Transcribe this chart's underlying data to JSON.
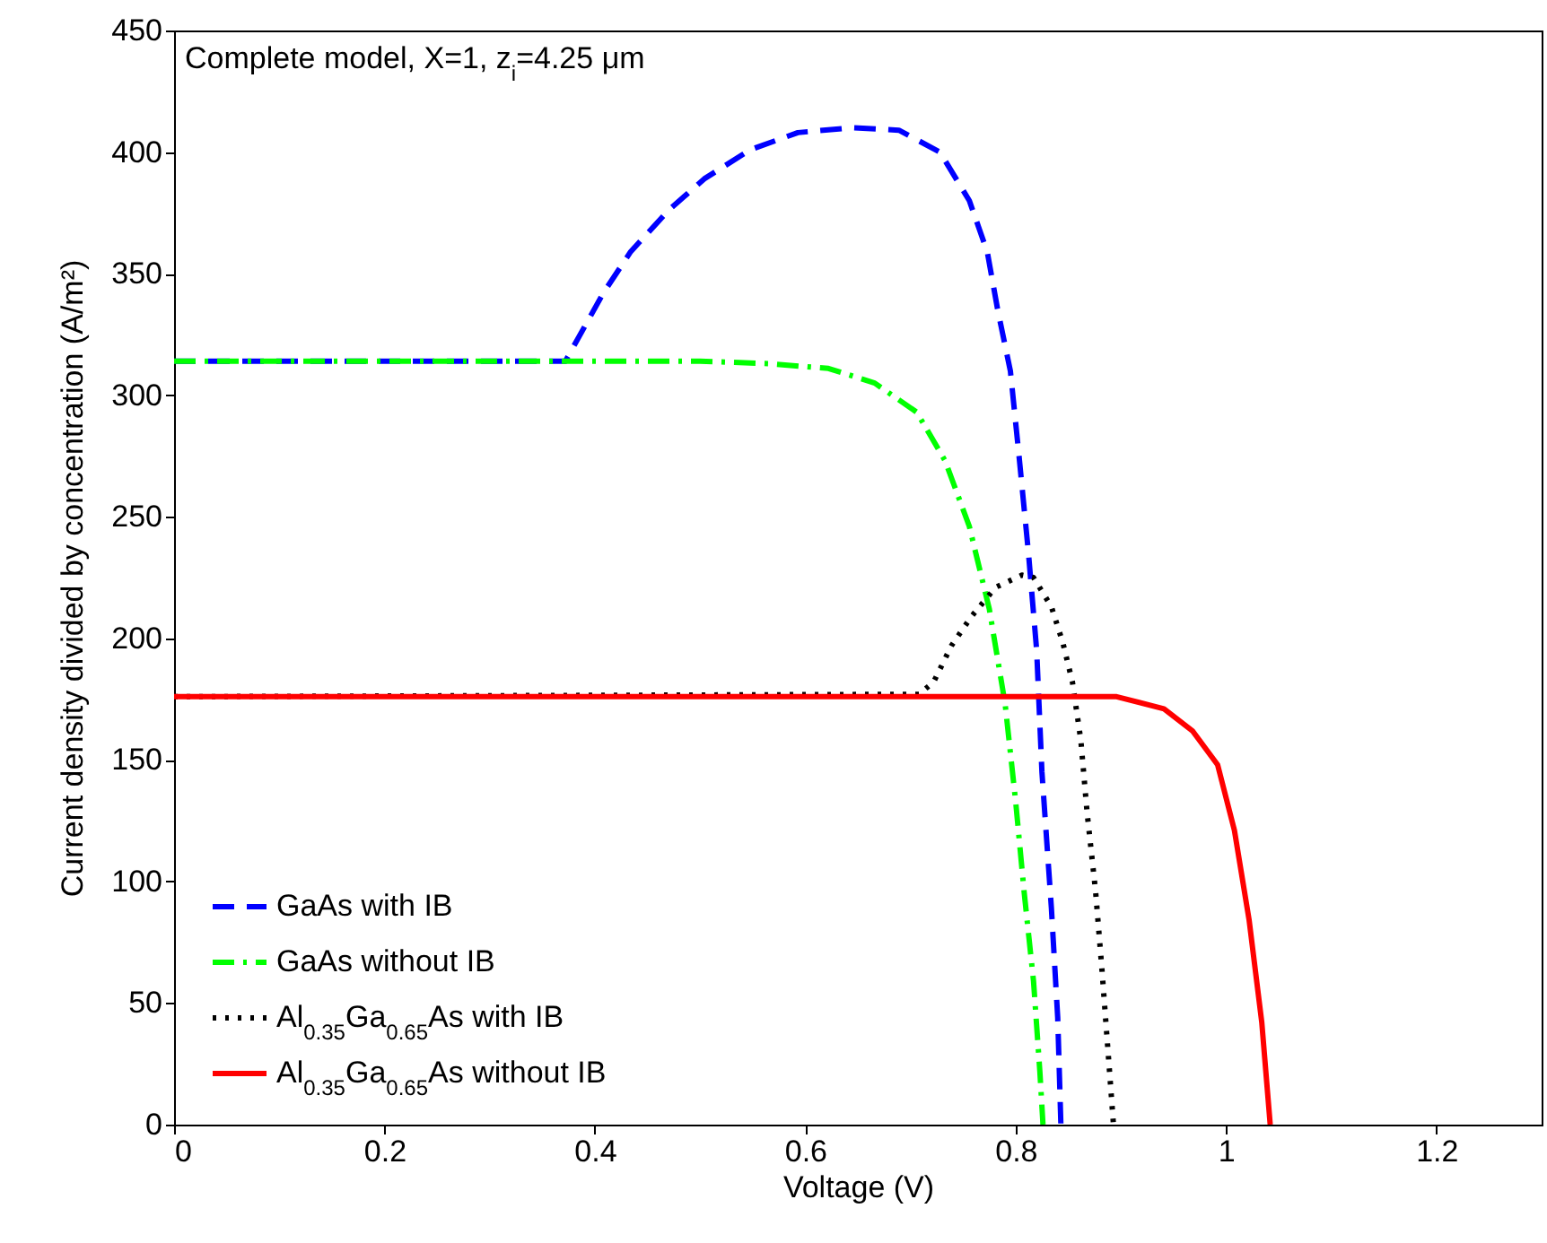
{
  "chart_data": {
    "type": "line",
    "xlabel": "Voltage (V)",
    "ylabel": "Current density divided by concentration (A/m²)",
    "annotations": [
      "Complete model, X=1, z$_{i}$=4.25 μm"
    ],
    "xlim": [
      0,
      1.3
    ],
    "xticks": [
      0,
      0.2,
      0.4,
      0.6,
      0.8,
      1,
      1.2
    ],
    "ylim": [
      0,
      450
    ],
    "yticks": [
      0,
      50,
      100,
      150,
      200,
      250,
      300,
      350,
      400,
      450
    ],
    "grid": false,
    "legend": "bottom left",
    "marker": "none",
    "series": [
      {
        "name": "GaAs with IB",
        "color": "#0000ff",
        "line_style": "dashed",
        "x": [
          0,
          0.372,
          0.408,
          0.434,
          0.47,
          0.504,
          0.548,
          0.593,
          0.644,
          0.689,
          0.728,
          0.756,
          0.773,
          0.783,
          0.795,
          0.803,
          0.812,
          0.82,
          0.825,
          0.834,
          0.84,
          0.843
        ],
        "values": [
          314,
          314,
          342,
          359,
          376,
          389,
          401,
          408,
          410,
          409,
          400,
          380,
          359,
          335,
          310,
          276,
          236,
          195,
          145,
          89,
          44,
          0
        ]
      },
      {
        "name": "GaAs without IB",
        "color": "#00ff00",
        "line_style": "dashdot",
        "x": [
          0,
          0.5,
          0.565,
          0.622,
          0.666,
          0.706,
          0.733,
          0.756,
          0.775,
          0.79,
          0.8,
          0.808,
          0.817,
          0.823,
          0.826
        ],
        "values": [
          314,
          314,
          313,
          311,
          305,
          293,
          273,
          246,
          212,
          173,
          133,
          96,
          59,
          22,
          0
        ]
      },
      {
        "name": "Al$_{0.35}$Ga$_{0.65}$As with IB",
        "color": "#000000",
        "line_style": "dotted",
        "x": [
          0,
          0.708,
          0.722,
          0.739,
          0.758,
          0.781,
          0.806,
          0.817,
          0.834,
          0.845,
          0.854,
          0.862,
          0.868,
          0.876,
          0.882,
          0.887,
          0.893
        ],
        "values": [
          176,
          177,
          182,
          197,
          209,
          221,
          226,
          225,
          213,
          198,
          182,
          158,
          128,
          96,
          64,
          35,
          0
        ]
      },
      {
        "name": "Al$_{0.35}$Ga$_{0.65}$As without IB",
        "color": "#ff0000",
        "line_style": "solid",
        "x": [
          0,
          0.85,
          0.896,
          0.941,
          0.968,
          0.992,
          1.008,
          1.022,
          1.034,
          1.042
        ],
        "values": [
          176,
          176,
          176,
          171,
          162,
          148,
          121,
          84,
          42,
          0
        ]
      }
    ]
  }
}
